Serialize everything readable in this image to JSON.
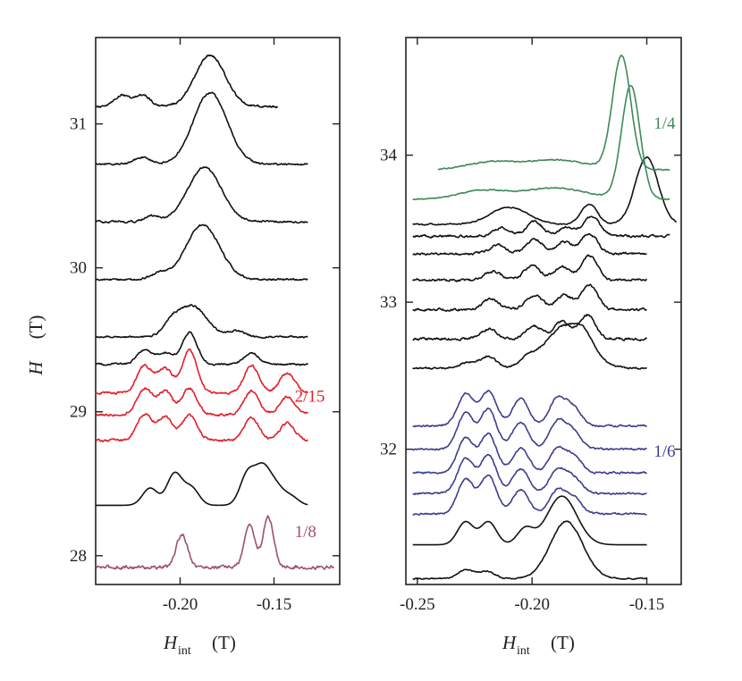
{
  "chart_data": [
    {
      "type": "line",
      "panel": "left",
      "xlabel_main": "H",
      "xlabel_sub": "int",
      "xlabel_unit": "(T)",
      "ylabel_main": "H",
      "ylabel_unit": "(T)",
      "xlim": [
        -0.245,
        -0.115
      ],
      "ylim": [
        27.8,
        31.6
      ],
      "xticks": [
        -0.2,
        -0.15
      ],
      "xtick_labels": [
        "-0.20",
        "-0.15"
      ],
      "yticks": [
        28,
        29,
        30,
        31
      ],
      "ytick_labels": [
        "28",
        "29",
        "30",
        "31"
      ],
      "trace_x_range": [
        -0.245,
        -0.132
      ],
      "peak_width": 0.004,
      "series": [
        {
          "field": 27.92,
          "color": "#a0506a",
          "noise": 0.006,
          "x_end": -0.118,
          "peaks": [
            [
              -0.199,
              0.23,
              0.003
            ],
            [
              -0.163,
              0.3,
              0.0028
            ],
            [
              -0.153,
              0.35,
              0.0028
            ]
          ]
        },
        {
          "field": 28.35,
          "color": "#111111",
          "noise": 0.0,
          "x_end": -0.132,
          "peaks": [
            [
              -0.216,
              0.12
            ],
            [
              -0.203,
              0.22
            ],
            [
              -0.194,
              0.12
            ],
            [
              -0.164,
              0.22
            ],
            [
              -0.156,
              0.24
            ],
            [
              -0.149,
              0.12
            ],
            [
              -0.141,
              0.06
            ]
          ]
        },
        {
          "field": 28.8,
          "color": "#e0202a",
          "noise": 0.004,
          "x_end": -0.132,
          "peaks": [
            [
              -0.219,
              0.18
            ],
            [
              -0.208,
              0.16
            ],
            [
              -0.195,
              0.18
            ],
            [
              -0.162,
              0.16
            ],
            [
              -0.143,
              0.12
            ]
          ]
        },
        {
          "field": 28.98,
          "color": "#e0202a",
          "noise": 0.004,
          "x_end": -0.132,
          "peaks": [
            [
              -0.219,
              0.18
            ],
            [
              -0.208,
              0.16
            ],
            [
              -0.195,
              0.18
            ],
            [
              -0.162,
              0.16
            ],
            [
              -0.143,
              0.12
            ]
          ]
        },
        {
          "field": 29.13,
          "color": "#e0202a",
          "noise": 0.004,
          "x_end": -0.132,
          "peaks": [
            [
              -0.219,
              0.19
            ],
            [
              -0.208,
              0.17
            ],
            [
              -0.195,
              0.3
            ],
            [
              -0.162,
              0.19
            ],
            [
              -0.143,
              0.14
            ]
          ]
        },
        {
          "field": 29.33,
          "color": "#111111",
          "noise": 0.003,
          "x_end": -0.132,
          "peaks": [
            [
              -0.219,
              0.1
            ],
            [
              -0.208,
              0.08
            ],
            [
              -0.195,
              0.22
            ],
            [
              -0.162,
              0.08
            ]
          ]
        },
        {
          "field": 29.52,
          "color": "#111111",
          "noise": 0.003,
          "x_end": -0.132,
          "peaks": [
            [
              -0.205,
              0.06
            ],
            [
              -0.194,
              0.22,
              0.008
            ],
            [
              -0.17,
              0.04
            ]
          ]
        },
        {
          "field": 29.92,
          "color": "#111111",
          "noise": 0.003,
          "x_end": -0.132,
          "peaks": [
            [
              -0.211,
              0.04
            ],
            [
              -0.188,
              0.38,
              0.009
            ]
          ]
        },
        {
          "field": 30.32,
          "color": "#111111",
          "noise": 0.003,
          "x_end": -0.132,
          "peaks": [
            [
              -0.215,
              0.04
            ],
            [
              -0.187,
              0.38,
              0.009
            ]
          ]
        },
        {
          "field": 30.72,
          "color": "#111111",
          "noise": 0.003,
          "x_end": -0.132,
          "peaks": [
            [
              -0.22,
              0.05
            ],
            [
              -0.184,
              0.5,
              0.009
            ]
          ]
        },
        {
          "field": 31.12,
          "color": "#111111",
          "noise": 0.003,
          "x_end": -0.148,
          "peaks": [
            [
              -0.231,
              0.08
            ],
            [
              -0.22,
              0.08
            ],
            [
              -0.184,
              0.36,
              0.008
            ]
          ]
        }
      ],
      "labels": [
        {
          "text": "2/15",
          "color": "#e0202a",
          "x": -0.139,
          "y": 29.07
        },
        {
          "text": "1/8",
          "color": "#a0506a",
          "x": -0.139,
          "y": 28.13
        }
      ]
    },
    {
      "type": "line",
      "panel": "right",
      "xlabel_main": "H",
      "xlabel_sub": "int",
      "xlabel_unit": "(T)",
      "xlim": [
        -0.255,
        -0.135
      ],
      "ylim": [
        31.08,
        34.8
      ],
      "xticks": [
        -0.25,
        -0.2,
        -0.15
      ],
      "xtick_labels": [
        "-0.25",
        "-0.20",
        "-0.15"
      ],
      "yticks": [
        32,
        33,
        34
      ],
      "ytick_labels": [
        "32",
        "33",
        "34"
      ],
      "trace_x_range": [
        -0.252,
        -0.15
      ],
      "peak_width": 0.0035,
      "series": [
        {
          "field": 31.12,
          "color": "#111111",
          "noise": 0.002,
          "x_end": -0.15,
          "peaks": [
            [
              -0.229,
              0.06
            ],
            [
              -0.22,
              0.05
            ],
            [
              -0.185,
              0.4,
              0.007
            ]
          ]
        },
        {
          "field": 31.35,
          "color": "#111111",
          "noise": 0.0,
          "x_end": -0.15,
          "peaks": [
            [
              -0.229,
              0.16
            ],
            [
              -0.219,
              0.16
            ],
            [
              -0.203,
              0.11
            ],
            [
              -0.187,
              0.34,
              0.0065
            ]
          ]
        },
        {
          "field": 31.56,
          "color": "#3d3d8f",
          "noise": 0.003,
          "x_end": -0.15,
          "peaks": [
            [
              -0.229,
              0.24
            ],
            [
              -0.219,
              0.27
            ],
            [
              -0.205,
              0.17
            ],
            [
              -0.189,
              0.16
            ],
            [
              -0.182,
              0.11
            ]
          ]
        },
        {
          "field": 31.7,
          "color": "#3d3d8f",
          "noise": 0.003,
          "x_end": -0.15,
          "peaks": [
            [
              -0.229,
              0.24
            ],
            [
              -0.219,
              0.27
            ],
            [
              -0.205,
              0.17
            ],
            [
              -0.189,
              0.16
            ],
            [
              -0.182,
              0.11
            ]
          ]
        },
        {
          "field": 31.84,
          "color": "#3d3d8f",
          "noise": 0.003,
          "x_end": -0.15,
          "peaks": [
            [
              -0.229,
              0.24
            ],
            [
              -0.219,
              0.27
            ],
            [
              -0.205,
              0.17
            ],
            [
              -0.189,
              0.16
            ],
            [
              -0.182,
              0.11
            ]
          ]
        },
        {
          "field": 32.0,
          "color": "#3d3d8f",
          "noise": 0.003,
          "x_end": -0.15,
          "peaks": [
            [
              -0.229,
              0.25
            ],
            [
              -0.219,
              0.28
            ],
            [
              -0.205,
              0.19
            ],
            [
              -0.189,
              0.19
            ],
            [
              -0.182,
              0.12
            ]
          ]
        },
        {
          "field": 32.16,
          "color": "#3d3d8f",
          "noise": 0.003,
          "x_end": -0.15,
          "peaks": [
            [
              -0.229,
              0.22
            ],
            [
              -0.219,
              0.24
            ],
            [
              -0.205,
              0.19
            ],
            [
              -0.189,
              0.19
            ],
            [
              -0.182,
              0.12
            ]
          ]
        },
        {
          "field": 32.55,
          "color": "#111111",
          "noise": 0.003,
          "x_end": -0.15,
          "peaks": [
            [
              -0.228,
              0.04
            ],
            [
              -0.219,
              0.08
            ],
            [
              -0.202,
              0.05
            ],
            [
              -0.185,
              0.3,
              0.009
            ],
            [
              -0.177,
              0.08
            ]
          ]
        },
        {
          "field": 32.75,
          "color": "#111111",
          "noise": 0.004,
          "x_end": -0.15,
          "peaks": [
            [
              -0.219,
              0.07
            ],
            [
              -0.199,
              0.09
            ],
            [
              -0.187,
              0.12
            ],
            [
              -0.176,
              0.17
            ]
          ]
        },
        {
          "field": 32.95,
          "color": "#111111",
          "noise": 0.004,
          "x_end": -0.15,
          "peaks": [
            [
              -0.218,
              0.07
            ],
            [
              -0.199,
              0.1
            ],
            [
              -0.186,
              0.1
            ],
            [
              -0.175,
              0.17
            ]
          ]
        },
        {
          "field": 33.15,
          "color": "#111111",
          "noise": 0.004,
          "x_end": -0.15,
          "peaks": [
            [
              -0.217,
              0.06
            ],
            [
              -0.2,
              0.1
            ],
            [
              -0.187,
              0.09
            ],
            [
              -0.175,
              0.17
            ]
          ]
        },
        {
          "field": 33.33,
          "color": "#111111",
          "noise": 0.004,
          "x_end": -0.15,
          "peaks": [
            [
              -0.215,
              0.06
            ],
            [
              -0.199,
              0.1
            ],
            [
              -0.186,
              0.08
            ],
            [
              -0.175,
              0.14
            ]
          ]
        },
        {
          "field": 33.45,
          "color": "#111111",
          "noise": 0.004,
          "x_end": -0.14,
          "peaks": [
            [
              -0.213,
              0.06
            ],
            [
              -0.199,
              0.1
            ],
            [
              -0.185,
              0.06
            ],
            [
              -0.174,
              0.14
            ]
          ]
        },
        {
          "field": 33.53,
          "color": "#111111",
          "noise": 0.002,
          "x_end": -0.137,
          "peaks": [
            [
              -0.21,
              0.12,
              0.008
            ],
            [
              -0.175,
              0.14
            ],
            [
              -0.15,
              0.47,
              0.005
            ]
          ]
        },
        {
          "field": 33.7,
          "color": "#3d8a5a",
          "noise": 0.002,
          "x_end": -0.14,
          "peaks": [
            [
              -0.222,
              0.06,
              0.01
            ],
            [
              -0.19,
              0.08,
              0.014
            ],
            [
              -0.157,
              0.79,
              0.004
            ]
          ]
        },
        {
          "field": 33.9,
          "color": "#3d8a5a",
          "noise": 0.002,
          "x_end": -0.14,
          "x_start": -0.241,
          "peaks": [
            [
              -0.219,
              0.05,
              0.01
            ],
            [
              -0.19,
              0.07,
              0.014
            ],
            [
              -0.161,
              0.79,
              0.004
            ]
          ]
        }
      ],
      "labels": [
        {
          "text": "1/4",
          "color": "#3d8a5a",
          "x": -0.147,
          "y": 34.18
        },
        {
          "text": "1/6",
          "color": "#3d3d8f",
          "x": -0.147,
          "y": 31.95
        }
      ]
    }
  ]
}
